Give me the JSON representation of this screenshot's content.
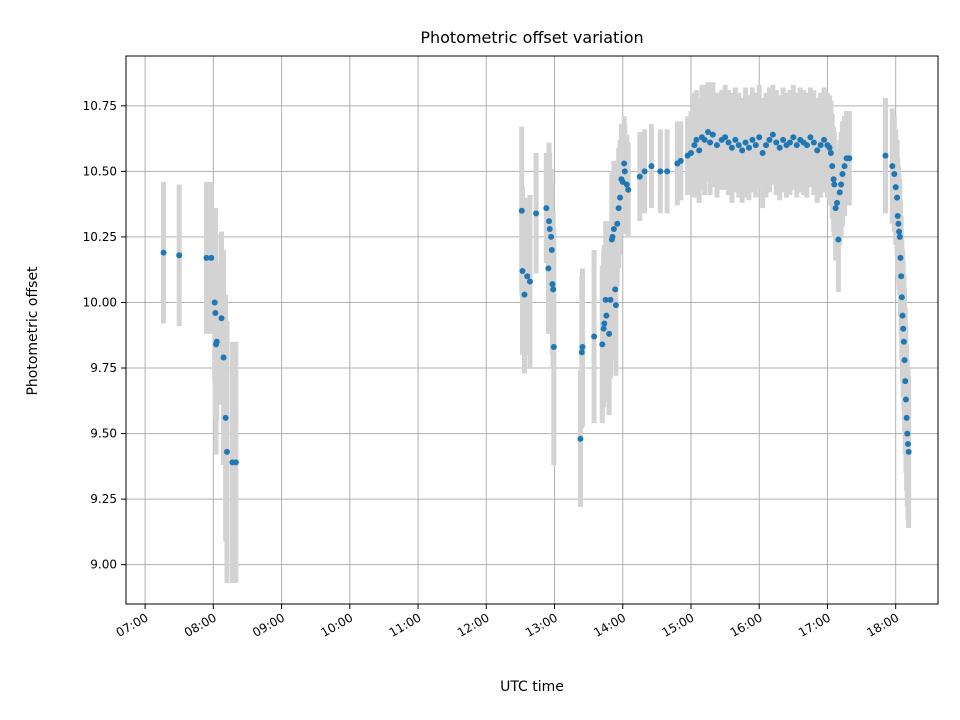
{
  "chart_data": {
    "type": "scatter",
    "title": "Photometric offset variation",
    "xlabel": "UTC time",
    "ylabel": "Photometric offset",
    "x_unit": "hours UTC",
    "xlim": [
      6.72,
      18.62
    ],
    "ylim": [
      8.85,
      10.94
    ],
    "x_ticks": [
      7,
      8,
      9,
      10,
      11,
      12,
      13,
      14,
      15,
      16,
      17,
      18
    ],
    "x_tick_labels": [
      "07:00",
      "08:00",
      "09:00",
      "10:00",
      "11:00",
      "12:00",
      "13:00",
      "14:00",
      "15:00",
      "16:00",
      "17:00",
      "18:00"
    ],
    "y_ticks": [
      9.0,
      9.25,
      9.5,
      9.75,
      10.0,
      10.25,
      10.5,
      10.75
    ],
    "y_tick_labels": [
      "9.00",
      "9.25",
      "9.50",
      "9.75",
      "10.00",
      "10.25",
      "10.50",
      "10.75"
    ],
    "grid": true,
    "colors": {
      "point": "#1f77b4",
      "errorbar": "#d3d3d3",
      "grid": "#b0b0b0"
    },
    "points": [
      [
        7.27,
        10.19,
        0.27
      ],
      [
        7.5,
        10.18,
        0.27
      ],
      [
        7.9,
        10.17,
        0.29
      ],
      [
        7.97,
        10.17,
        0.29
      ],
      [
        8.02,
        10.0,
        0.3
      ],
      [
        8.03,
        9.96,
        0.4
      ],
      [
        8.05,
        9.85,
        0.3
      ],
      [
        8.04,
        9.84,
        0.42
      ],
      [
        8.12,
        9.94,
        0.33
      ],
      [
        8.15,
        9.79,
        0.41
      ],
      [
        8.18,
        9.56,
        0.47
      ],
      [
        8.2,
        9.43,
        0.5
      ],
      [
        8.28,
        9.39,
        0.46
      ],
      [
        8.33,
        9.39,
        0.46
      ],
      [
        12.52,
        10.35,
        0.32
      ],
      [
        12.53,
        10.12,
        0.32
      ],
      [
        12.56,
        10.03,
        0.3
      ],
      [
        12.6,
        10.1,
        0.3
      ],
      [
        12.64,
        10.08,
        0.33
      ],
      [
        12.73,
        10.34,
        0.23
      ],
      [
        12.88,
        10.36,
        0.21
      ],
      [
        12.91,
        10.13,
        0.25
      ],
      [
        12.92,
        10.31,
        0.3
      ],
      [
        12.93,
        10.28,
        0.29
      ],
      [
        12.95,
        10.25,
        0.26
      ],
      [
        12.96,
        10.2,
        0.26
      ],
      [
        12.97,
        10.07,
        0.27
      ],
      [
        12.98,
        10.05,
        0.3
      ],
      [
        12.99,
        9.83,
        0.45
      ],
      [
        13.4,
        9.81,
        0.29
      ],
      [
        13.41,
        9.83,
        0.3
      ],
      [
        13.38,
        9.48,
        0.26
      ],
      [
        13.58,
        9.87,
        0.33
      ],
      [
        13.7,
        9.84,
        0.3
      ],
      [
        13.72,
        9.9,
        0.3
      ],
      [
        13.73,
        9.92,
        0.3
      ],
      [
        13.75,
        10.01,
        0.3
      ],
      [
        13.76,
        9.95,
        0.3
      ],
      [
        13.8,
        9.88,
        0.31
      ],
      [
        13.82,
        10.01,
        0.3
      ],
      [
        13.84,
        10.24,
        0.25
      ],
      [
        13.85,
        10.25,
        0.25
      ],
      [
        13.87,
        10.28,
        0.26
      ],
      [
        13.89,
        10.05,
        0.27
      ],
      [
        13.9,
        9.99,
        0.27
      ],
      [
        13.92,
        10.3,
        0.24
      ],
      [
        13.94,
        10.36,
        0.23
      ],
      [
        13.96,
        10.4,
        0.22
      ],
      [
        13.98,
        10.47,
        0.21
      ],
      [
        14.0,
        10.46,
        0.2
      ],
      [
        14.02,
        10.53,
        0.18
      ],
      [
        14.03,
        10.5,
        0.18
      ],
      [
        14.06,
        10.45,
        0.19
      ],
      [
        14.08,
        10.43,
        0.18
      ],
      [
        14.25,
        10.48,
        0.17
      ],
      [
        14.32,
        10.5,
        0.16
      ],
      [
        14.42,
        10.52,
        0.16
      ],
      [
        14.55,
        10.5,
        0.16
      ],
      [
        14.65,
        10.5,
        0.16
      ],
      [
        14.8,
        10.53,
        0.16
      ],
      [
        14.85,
        10.54,
        0.15
      ],
      [
        14.95,
        10.56,
        0.15
      ],
      [
        15.0,
        10.57,
        0.16
      ],
      [
        15.05,
        10.6,
        0.2
      ],
      [
        15.08,
        10.62,
        0.19
      ],
      [
        15.12,
        10.58,
        0.2
      ],
      [
        15.16,
        10.63,
        0.2
      ],
      [
        15.2,
        10.62,
        0.21
      ],
      [
        15.25,
        10.65,
        0.19
      ],
      [
        15.28,
        10.61,
        0.2
      ],
      [
        15.32,
        10.64,
        0.2
      ],
      [
        15.38,
        10.6,
        0.2
      ],
      [
        15.45,
        10.62,
        0.19
      ],
      [
        15.5,
        10.63,
        0.2
      ],
      [
        15.55,
        10.61,
        0.2
      ],
      [
        15.6,
        10.59,
        0.21
      ],
      [
        15.65,
        10.62,
        0.2
      ],
      [
        15.7,
        10.6,
        0.2
      ],
      [
        15.75,
        10.58,
        0.2
      ],
      [
        15.8,
        10.61,
        0.21
      ],
      [
        15.85,
        10.59,
        0.2
      ],
      [
        15.9,
        10.62,
        0.2
      ],
      [
        15.95,
        10.6,
        0.2
      ],
      [
        16.0,
        10.63,
        0.2
      ],
      [
        16.05,
        10.57,
        0.21
      ],
      [
        16.1,
        10.6,
        0.2
      ],
      [
        16.15,
        10.62,
        0.2
      ],
      [
        16.2,
        10.64,
        0.19
      ],
      [
        16.25,
        10.61,
        0.2
      ],
      [
        16.3,
        10.59,
        0.2
      ],
      [
        16.35,
        10.62,
        0.2
      ],
      [
        16.4,
        10.6,
        0.2
      ],
      [
        16.45,
        10.61,
        0.2
      ],
      [
        16.5,
        10.63,
        0.2
      ],
      [
        16.55,
        10.6,
        0.2
      ],
      [
        16.6,
        10.62,
        0.2
      ],
      [
        16.65,
        10.61,
        0.2
      ],
      [
        16.7,
        10.6,
        0.2
      ],
      [
        16.75,
        10.63,
        0.19
      ],
      [
        16.8,
        10.61,
        0.2
      ],
      [
        16.85,
        10.58,
        0.2
      ],
      [
        16.9,
        10.6,
        0.2
      ],
      [
        16.95,
        10.62,
        0.2
      ],
      [
        17.0,
        10.6,
        0.2
      ],
      [
        17.03,
        10.59,
        0.2
      ],
      [
        17.05,
        10.57,
        0.2
      ],
      [
        17.07,
        10.52,
        0.2
      ],
      [
        17.09,
        10.47,
        0.2
      ],
      [
        17.1,
        10.45,
        0.2
      ],
      [
        17.12,
        10.36,
        0.2
      ],
      [
        17.14,
        10.38,
        0.2
      ],
      [
        17.16,
        10.24,
        0.2
      ],
      [
        17.18,
        10.42,
        0.2
      ],
      [
        17.2,
        10.45,
        0.2
      ],
      [
        17.22,
        10.49,
        0.2
      ],
      [
        17.25,
        10.52,
        0.19
      ],
      [
        17.28,
        10.55,
        0.18
      ],
      [
        17.32,
        10.55,
        0.18
      ],
      [
        17.85,
        10.56,
        0.22
      ],
      [
        17.95,
        10.52,
        0.22
      ],
      [
        17.98,
        10.49,
        0.22
      ],
      [
        18.0,
        10.44,
        0.22
      ],
      [
        18.02,
        10.4,
        0.22
      ],
      [
        18.03,
        10.33,
        0.22
      ],
      [
        18.04,
        10.3,
        0.22
      ],
      [
        18.05,
        10.27,
        0.22
      ],
      [
        18.06,
        10.25,
        0.22
      ],
      [
        18.07,
        10.17,
        0.22
      ],
      [
        18.08,
        10.1,
        0.23
      ],
      [
        18.09,
        10.02,
        0.24
      ],
      [
        18.1,
        9.95,
        0.25
      ],
      [
        18.11,
        9.9,
        0.26
      ],
      [
        18.12,
        9.85,
        0.26
      ],
      [
        18.13,
        9.78,
        0.27
      ],
      [
        18.14,
        9.7,
        0.28
      ],
      [
        18.15,
        9.63,
        0.28
      ],
      [
        18.16,
        9.56,
        0.28
      ],
      [
        18.17,
        9.5,
        0.28
      ],
      [
        18.18,
        9.46,
        0.29
      ],
      [
        18.19,
        9.43,
        0.29
      ]
    ]
  }
}
